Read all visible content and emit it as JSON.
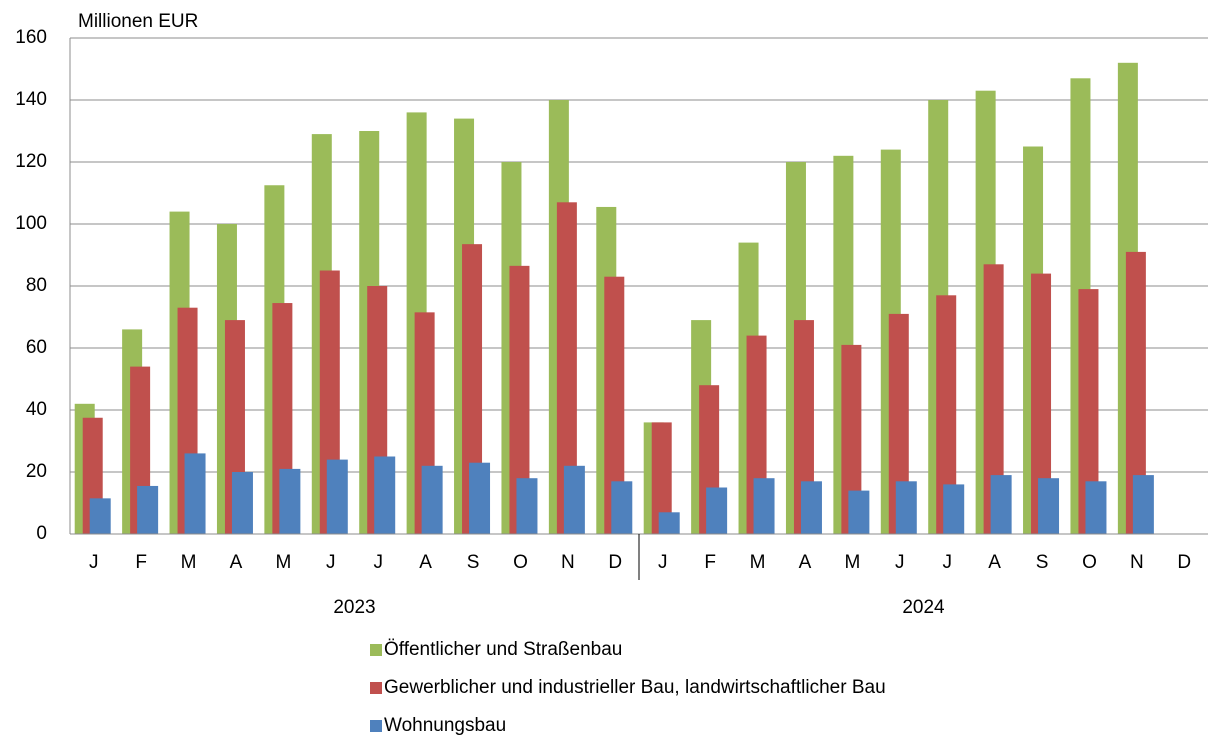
{
  "chart_data": {
    "type": "bar",
    "y_label": "Millionen EUR",
    "categories": [
      "J",
      "F",
      "M",
      "A",
      "M",
      "J",
      "J",
      "A",
      "S",
      "O",
      "N",
      "D",
      "J",
      "F",
      "M",
      "A",
      "M",
      "J",
      "J",
      "A",
      "S",
      "O",
      "N",
      "D"
    ],
    "groups": [
      "2023",
      "2024"
    ],
    "series": [
      {
        "name": "Öffentlicher und Straßenbau",
        "color": "#9bbb59",
        "values": [
          42,
          66,
          104,
          100,
          112.5,
          129,
          130,
          136,
          134,
          120,
          140,
          105.5,
          36,
          69,
          94,
          120,
          122,
          124,
          140,
          143,
          125,
          147,
          152,
          null
        ]
      },
      {
        "name": "Gewerblicher und industrieller Bau, landwirtschaftlicher Bau",
        "color": "#c0504d",
        "values": [
          37.5,
          54,
          73,
          69,
          74.5,
          85,
          80,
          71.5,
          93.5,
          86.5,
          107,
          83,
          36,
          48,
          64,
          69,
          61,
          71,
          77,
          87,
          84,
          79,
          91,
          null
        ]
      },
      {
        "name": "Wohnungsbau",
        "color": "#4f81bd",
        "values": [
          11.5,
          15.5,
          26,
          20,
          21,
          24,
          25,
          22,
          23,
          18,
          22,
          17,
          7,
          15,
          18,
          17,
          14,
          17,
          16,
          19,
          18,
          17,
          19,
          null
        ]
      }
    ],
    "ylim": [
      0,
      160
    ],
    "yticks": [
      0,
      20,
      40,
      60,
      80,
      100,
      120,
      140,
      160
    ],
    "grid": true
  }
}
